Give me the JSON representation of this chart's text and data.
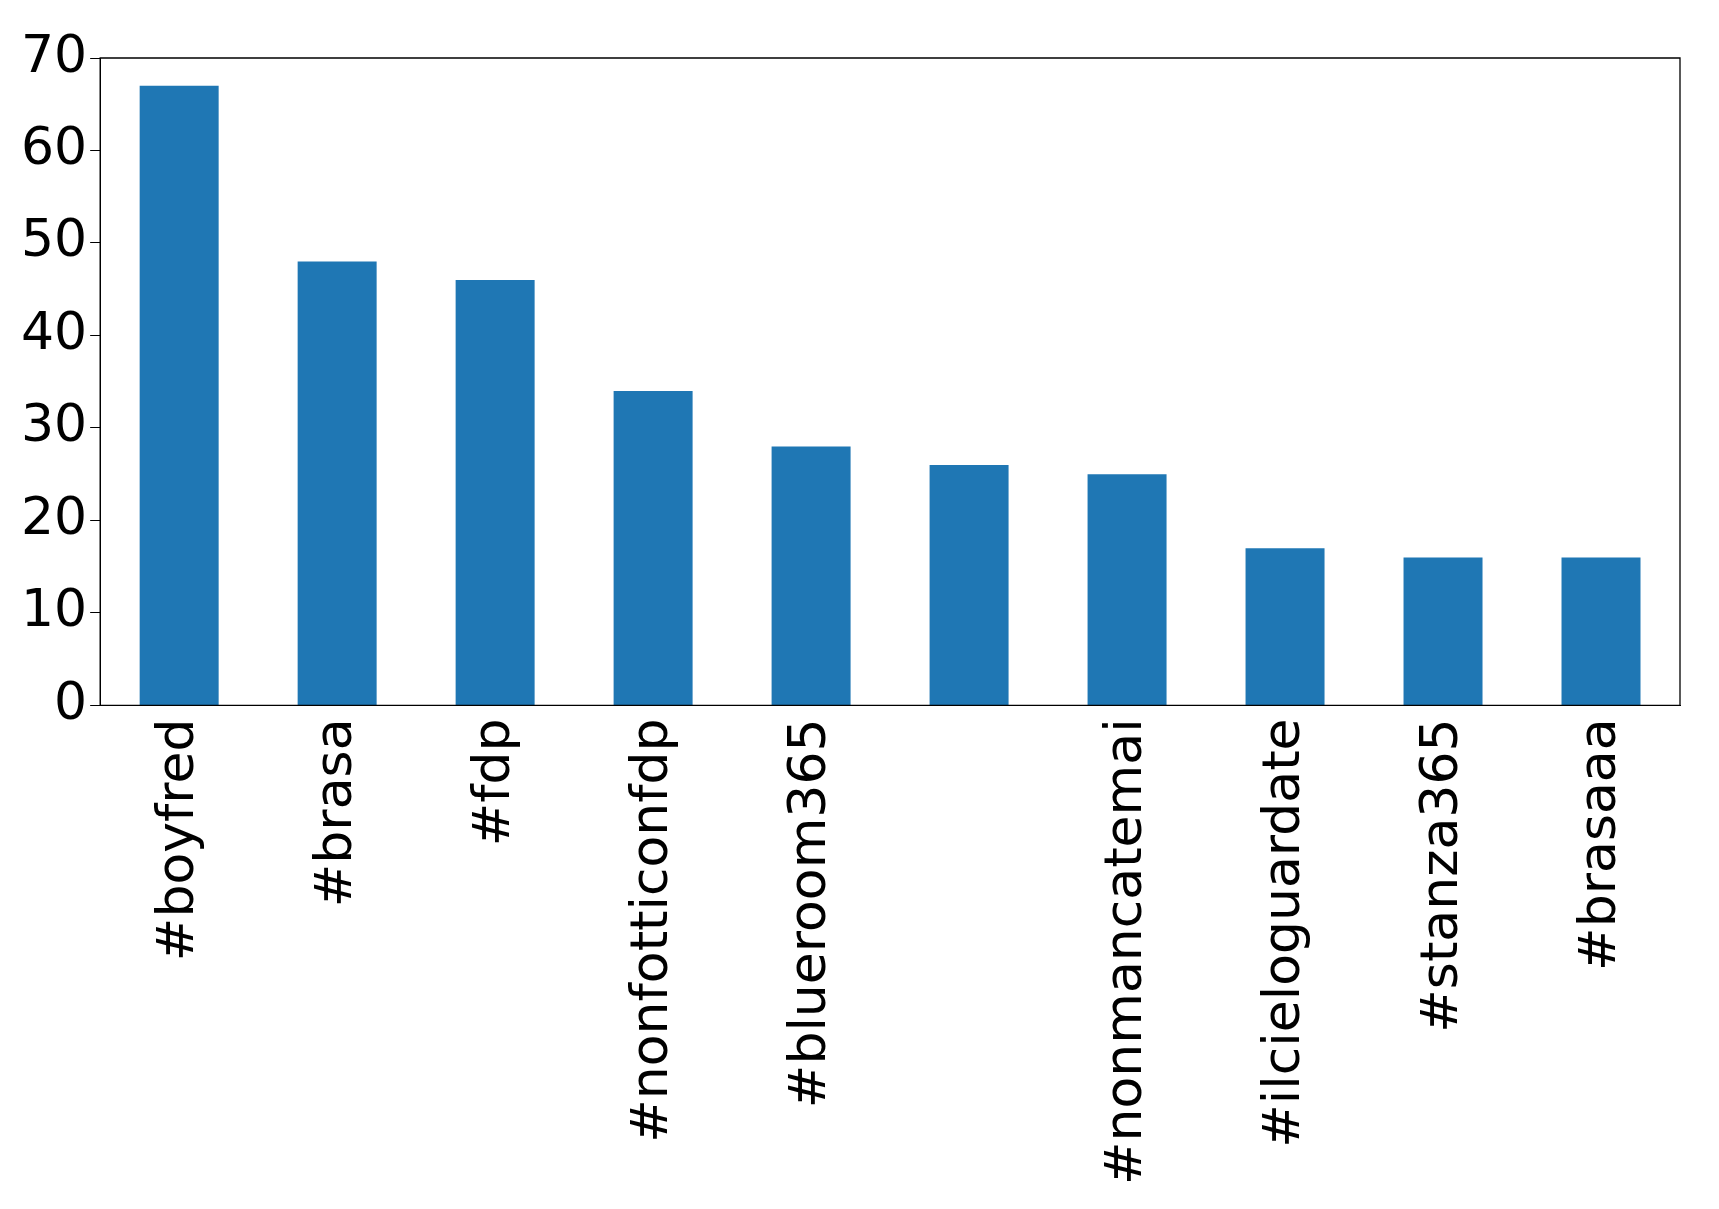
{
  "chart_data": {
    "type": "bar",
    "categories": [
      "#boyfred",
      "#brasa",
      "#fdp",
      "#nonfotticonfdp",
      "#blueroom365",
      null,
      "#nonmancatemai",
      "#ilcieloguardate",
      "#stanza365",
      "#brasaaa"
    ],
    "values": [
      67,
      48,
      46,
      34,
      28,
      26,
      25,
      17,
      16,
      16
    ],
    "color": "#1f77b4",
    "ylim": [
      0,
      70
    ],
    "yticks": [
      0,
      10,
      20,
      30,
      40,
      50,
      60,
      70
    ],
    "grid": false,
    "legend": false
  }
}
